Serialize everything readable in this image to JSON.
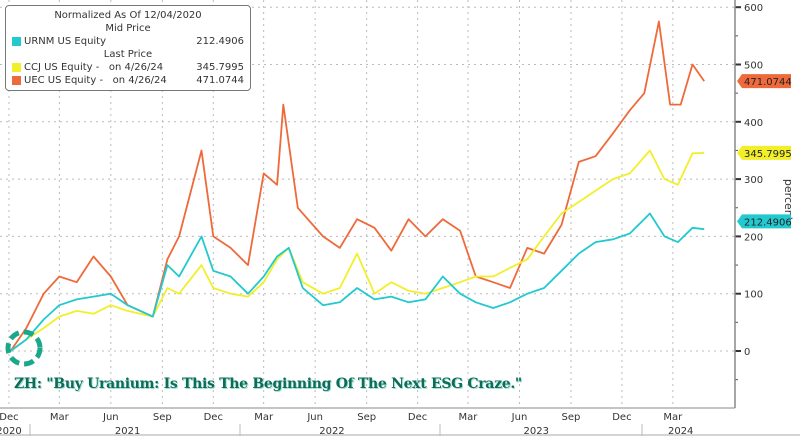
{
  "chart_data": {
    "type": "line",
    "ylabel": "percent",
    "ylim": [
      -100,
      610
    ],
    "yticks": [
      0,
      100,
      200,
      300,
      400,
      500,
      600
    ],
    "xlim": [
      "2020-11-15",
      "2024-06-20"
    ],
    "xticks": [
      {
        "date": "2020-12-01",
        "label": "Dec"
      },
      {
        "date": "2021-03-01",
        "label": "Mar"
      },
      {
        "date": "2021-06-01",
        "label": "Jun"
      },
      {
        "date": "2021-09-01",
        "label": "Sep"
      },
      {
        "date": "2021-12-01",
        "label": "Dec"
      },
      {
        "date": "2022-03-01",
        "label": "Mar"
      },
      {
        "date": "2022-06-01",
        "label": "Jun"
      },
      {
        "date": "2022-09-01",
        "label": "Sep"
      },
      {
        "date": "2022-12-01",
        "label": "Dec"
      },
      {
        "date": "2023-03-01",
        "label": "Mar"
      },
      {
        "date": "2023-06-01",
        "label": "Jun"
      },
      {
        "date": "2023-09-01",
        "label": "Sep"
      },
      {
        "date": "2023-12-01",
        "label": "Dec"
      },
      {
        "date": "2024-03-01",
        "label": "Mar"
      }
    ],
    "years": [
      {
        "date": "2020-12-01",
        "label": "2020"
      },
      {
        "date": "2021-07-01",
        "label": "2021"
      },
      {
        "date": "2022-07-01",
        "label": "2022"
      },
      {
        "date": "2023-07-01",
        "label": "2023"
      },
      {
        "date": "2024-03-15",
        "label": "2024"
      }
    ],
    "grid": true,
    "legend_position": "top-left",
    "legend": {
      "title": "Normalized As Of 12/04/2020",
      "group1": "Mid Price",
      "group2": "Last Price"
    },
    "series": [
      {
        "name": "URNM US Equity",
        "legend_text": "URNM US Equity",
        "legend_value": "212.4906",
        "last_label": "212.4906",
        "color": "#22c9cf",
        "x": [
          "2020-12-04",
          "2021-01-01",
          "2021-02-01",
          "2021-03-01",
          "2021-04-01",
          "2021-05-01",
          "2021-06-01",
          "2021-07-01",
          "2021-08-15",
          "2021-09-10",
          "2021-10-01",
          "2021-11-10",
          "2021-12-01",
          "2022-01-01",
          "2022-02-01",
          "2022-03-01",
          "2022-03-25",
          "2022-04-15",
          "2022-05-10",
          "2022-06-15",
          "2022-07-15",
          "2022-08-15",
          "2022-09-15",
          "2022-10-15",
          "2022-11-15",
          "2022-12-15",
          "2023-01-15",
          "2023-02-15",
          "2023-03-15",
          "2023-04-15",
          "2023-05-15",
          "2023-06-15",
          "2023-07-15",
          "2023-08-15",
          "2023-09-15",
          "2023-10-15",
          "2023-11-15",
          "2023-12-15",
          "2024-01-20",
          "2024-02-15",
          "2024-03-10",
          "2024-04-05",
          "2024-04-26"
        ],
        "y": [
          0,
          20,
          55,
          80,
          90,
          95,
          100,
          80,
          60,
          150,
          130,
          200,
          140,
          130,
          100,
          130,
          165,
          180,
          110,
          80,
          85,
          110,
          90,
          95,
          85,
          90,
          130,
          100,
          85,
          75,
          85,
          100,
          110,
          140,
          170,
          190,
          195,
          205,
          240,
          200,
          190,
          215,
          212.49
        ]
      },
      {
        "name": "CCJ US Equity",
        "legend_text": "CCJ US Equity -   on 4/26/24",
        "legend_value": "345.7995",
        "last_label": "345.7995",
        "color": "#f2ef2a",
        "x": [
          "2020-12-04",
          "2021-01-01",
          "2021-02-01",
          "2021-03-01",
          "2021-04-01",
          "2021-05-01",
          "2021-06-01",
          "2021-07-01",
          "2021-08-15",
          "2021-09-10",
          "2021-10-01",
          "2021-11-10",
          "2021-12-01",
          "2022-01-01",
          "2022-02-01",
          "2022-03-01",
          "2022-03-25",
          "2022-04-15",
          "2022-05-10",
          "2022-06-15",
          "2022-07-15",
          "2022-08-15",
          "2022-09-15",
          "2022-10-15",
          "2022-11-15",
          "2022-12-15",
          "2023-01-15",
          "2023-02-15",
          "2023-03-15",
          "2023-04-15",
          "2023-05-15",
          "2023-06-15",
          "2023-07-15",
          "2023-08-15",
          "2023-09-15",
          "2023-10-15",
          "2023-11-15",
          "2023-12-15",
          "2024-01-20",
          "2024-02-15",
          "2024-03-10",
          "2024-04-05",
          "2024-04-26"
        ],
        "y": [
          0,
          20,
          40,
          60,
          70,
          65,
          80,
          70,
          60,
          110,
          100,
          150,
          110,
          100,
          95,
          120,
          160,
          180,
          120,
          100,
          110,
          170,
          100,
          120,
          105,
          100,
          110,
          120,
          130,
          130,
          145,
          160,
          200,
          240,
          260,
          280,
          300,
          310,
          350,
          300,
          290,
          345,
          345.8
        ]
      },
      {
        "name": "UEC US Equity",
        "legend_text": "UEC US Equity -   on 4/26/24",
        "legend_value": "471.0744",
        "last_label": "471.0744",
        "color": "#ee6a3a",
        "x": [
          "2020-12-04",
          "2021-01-01",
          "2021-02-01",
          "2021-03-01",
          "2021-04-01",
          "2021-05-01",
          "2021-06-01",
          "2021-07-01",
          "2021-08-15",
          "2021-09-10",
          "2021-10-01",
          "2021-11-10",
          "2021-12-01",
          "2022-01-01",
          "2022-02-01",
          "2022-03-01",
          "2022-03-25",
          "2022-04-05",
          "2022-05-01",
          "2022-06-15",
          "2022-07-15",
          "2022-08-15",
          "2022-09-15",
          "2022-10-15",
          "2022-11-15",
          "2022-12-15",
          "2023-01-15",
          "2023-02-15",
          "2023-03-15",
          "2023-04-15",
          "2023-05-15",
          "2023-06-15",
          "2023-07-15",
          "2023-08-15",
          "2023-09-15",
          "2023-10-15",
          "2023-11-15",
          "2023-12-15",
          "2024-01-10",
          "2024-02-05",
          "2024-02-25",
          "2024-03-15",
          "2024-04-05",
          "2024-04-26"
        ],
        "y": [
          0,
          40,
          100,
          130,
          120,
          165,
          130,
          80,
          60,
          160,
          200,
          350,
          200,
          180,
          150,
          310,
          290,
          430,
          250,
          200,
          180,
          230,
          215,
          175,
          230,
          200,
          230,
          210,
          130,
          120,
          110,
          180,
          170,
          220,
          330,
          340,
          380,
          420,
          450,
          575,
          430,
          430,
          500,
          471.07
        ]
      }
    ],
    "annotation": "ZH: \"Buy Uranium: Is This The Beginning Of The Next ESG Craze.\""
  },
  "colors": {
    "logo": "#1aa88a",
    "caption": "#0d6b5a"
  }
}
